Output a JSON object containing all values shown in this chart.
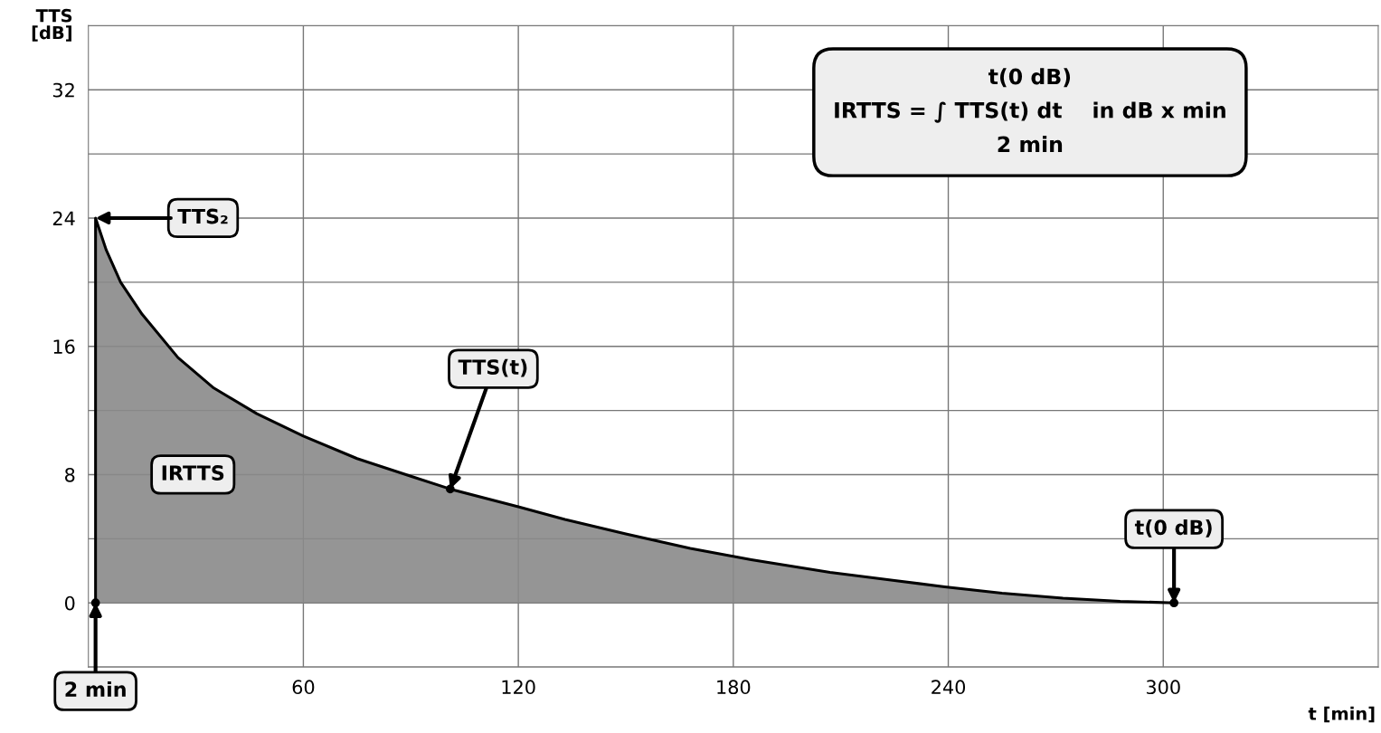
{
  "chart_data": {
    "type": "area",
    "xlabel": "t [min]",
    "ylabel": "TTS\n[dB]",
    "x": [
      2,
      2,
      5,
      9,
      15,
      25,
      35,
      47,
      60,
      75,
      90,
      101,
      120,
      133,
      150,
      168,
      185,
      207,
      225,
      239,
      255,
      272,
      288,
      303
    ],
    "series": [
      {
        "color": "#8a8a8a",
        "values": [
          0,
          24,
          22,
          20,
          18,
          15.3,
          13.4,
          11.8,
          10.4,
          9.0,
          7.9,
          7.1,
          6.0,
          5.2,
          4.3,
          3.4,
          2.7,
          1.9,
          1.4,
          1.0,
          0.6,
          0.3,
          0.1,
          0
        ]
      }
    ],
    "xlim": [
      0,
      360
    ],
    "xticks": [
      60,
      120,
      180,
      240,
      300
    ],
    "ylim": [
      -4,
      36
    ],
    "yticks": [
      {
        "value": -4,
        "label": null
      },
      0,
      {
        "value": 4,
        "label": null
      },
      8,
      {
        "value": 12,
        "label": null
      },
      16,
      {
        "value": 20,
        "label": null
      },
      24,
      {
        "value": 28,
        "label": null
      },
      32,
      {
        "value": 36,
        "label": null
      }
    ],
    "grid": true,
    "legend": false,
    "annotations": [
      "TTS₂",
      {
        "text": "TTS(t)",
        "x": 101,
        "y": 7.1
      },
      {
        "text": "2 min",
        "x": 2,
        "y": 0
      },
      {
        "text": "t(0 dB)",
        "x": 303,
        "y": 0
      },
      "IRTTS",
      "t(0 dB)\nIRTTS = ∫ TTS(t) dt    in dB x min\n2 min"
    ]
  }
}
